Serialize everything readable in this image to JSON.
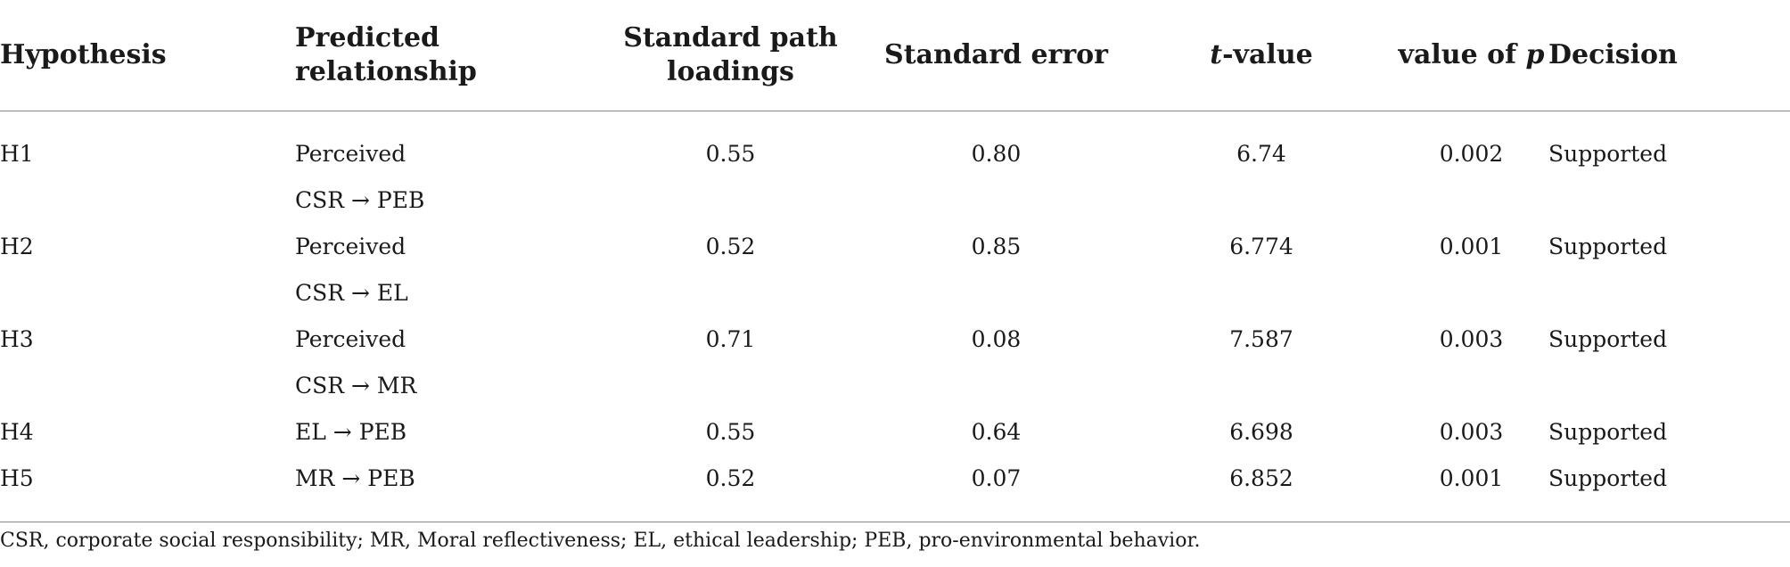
{
  "headers": {
    "hypothesis": "Hypothesis",
    "predicted_line1": "Predicted",
    "predicted_line2": "relationship",
    "path_line1": "Standard path",
    "path_line2": "loadings",
    "std_error": "Standard error",
    "t_value_italic": "t",
    "t_value_rest": "-value",
    "p_value_prefix": "value of ",
    "p_value_italic": "p",
    "decision": "Decision"
  },
  "rows": [
    {
      "hypothesis": "H1",
      "rel_line1": "Perceived",
      "rel_line2": "CSR → PEB",
      "loading": "0.55",
      "std_error": "0.80",
      "t_value": "6.74",
      "p_value": "0.002",
      "decision": "Supported"
    },
    {
      "hypothesis": "H2",
      "rel_line1": "Perceived",
      "rel_line2": "CSR → EL",
      "loading": "0.52",
      "std_error": "0.85",
      "t_value": "6.774",
      "p_value": "0.001",
      "decision": "Supported"
    },
    {
      "hypothesis": "H3",
      "rel_line1": "Perceived",
      "rel_line2": "CSR → MR",
      "loading": "0.71",
      "std_error": "0.08",
      "t_value": "7.587",
      "p_value": "0.003",
      "decision": "Supported"
    },
    {
      "hypothesis": "H4",
      "rel_line1": "EL → PEB",
      "loading": "0.55",
      "std_error": "0.64",
      "t_value": "6.698",
      "p_value": "0.003",
      "decision": "Supported"
    },
    {
      "hypothesis": "H5",
      "rel_line1": "MR → PEB",
      "loading": "0.52",
      "std_error": "0.07",
      "t_value": "6.852",
      "p_value": "0.001",
      "decision": "Supported"
    }
  ],
  "footnote": "CSR, corporate social responsibility; MR, Moral reflectiveness; EL, ethical leadership; PEB, pro-environmental behavior."
}
